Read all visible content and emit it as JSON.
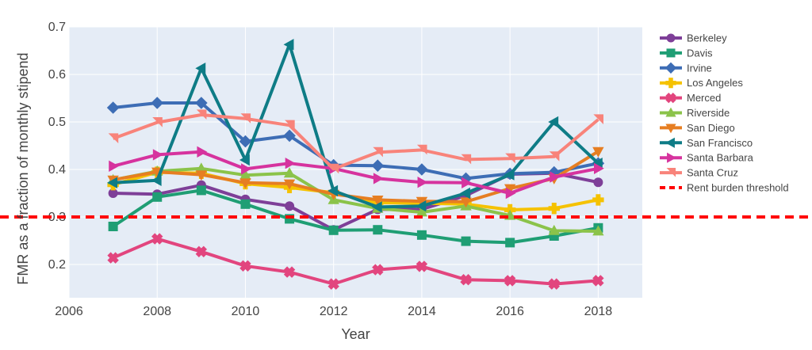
{
  "chart_data": {
    "type": "line",
    "xlabel": "Year",
    "ylabel": "FMR as a fraction of monthly stipend",
    "xlim": [
      2006,
      2019
    ],
    "ylim": [
      0.13,
      0.7
    ],
    "x_ticks": [
      2006,
      2008,
      2010,
      2012,
      2014,
      2016,
      2018
    ],
    "x_tick_labels": [
      "2006",
      "2008",
      "2010",
      "2012",
      "2014",
      "2016",
      "2018"
    ],
    "y_ticks": [
      0.2,
      0.3,
      0.4,
      0.5,
      0.6,
      0.7
    ],
    "y_tick_labels": [
      "0.2",
      "0.3",
      "0.4",
      "0.5",
      "0.6",
      "0.7"
    ],
    "grid": true,
    "legend_position": "right",
    "x": [
      2007,
      2008,
      2009,
      2010,
      2011,
      2012,
      2013,
      2014,
      2015,
      2016,
      2017,
      2018
    ],
    "series": [
      {
        "name": "Berkeley",
        "color": "#7E3F98",
        "marker": "circle",
        "values": [
          0.35,
          0.348,
          0.367,
          0.337,
          0.323,
          0.273,
          0.316,
          0.316,
          0.345,
          0.39,
          0.392,
          0.373
        ]
      },
      {
        "name": "Davis",
        "color": "#1F9E74",
        "marker": "square",
        "values": [
          0.28,
          0.342,
          0.356,
          0.327,
          0.296,
          0.272,
          0.273,
          0.262,
          0.249,
          0.246,
          0.26,
          0.277
        ]
      },
      {
        "name": "Irvine",
        "color": "#3D6DB5",
        "marker": "diamond",
        "values": [
          0.53,
          0.54,
          0.54,
          0.459,
          0.471,
          0.409,
          0.408,
          0.4,
          0.381,
          0.391,
          0.394,
          0.413
        ]
      },
      {
        "name": "Los Angeles",
        "color": "#F5C200",
        "marker": "cross",
        "values": [
          0.368,
          0.394,
          0.392,
          0.37,
          0.362,
          0.351,
          0.33,
          0.329,
          0.327,
          0.315,
          0.318,
          0.336
        ]
      },
      {
        "name": "Merced",
        "color": "#E2457E",
        "marker": "x",
        "values": [
          0.214,
          0.254,
          0.227,
          0.197,
          0.184,
          0.159,
          0.189,
          0.196,
          0.168,
          0.166,
          0.159,
          0.166
        ]
      },
      {
        "name": "Riverside",
        "color": "#8BC34A",
        "marker": "triangle-up",
        "values": [
          0.378,
          0.396,
          0.402,
          0.388,
          0.392,
          0.336,
          0.318,
          0.31,
          0.323,
          0.303,
          0.271,
          0.27
        ]
      },
      {
        "name": "San Diego",
        "color": "#E67E22",
        "marker": "triangle-down",
        "values": [
          0.378,
          0.395,
          0.389,
          0.372,
          0.37,
          0.348,
          0.336,
          0.333,
          0.332,
          0.36,
          0.381,
          0.438
        ]
      },
      {
        "name": "San Francisco",
        "color": "#0E7C86",
        "marker": "triangle-left",
        "values": [
          0.372,
          0.377,
          0.613,
          0.42,
          0.663,
          0.355,
          0.321,
          0.323,
          0.35,
          0.389,
          0.5,
          0.413
        ]
      },
      {
        "name": "Santa Barbara",
        "color": "#D6339E",
        "marker": "triangle-right",
        "values": [
          0.407,
          0.431,
          0.437,
          0.401,
          0.413,
          0.402,
          0.381,
          0.373,
          0.372,
          0.35,
          0.384,
          0.402
        ]
      },
      {
        "name": "Santa Cruz",
        "color": "#F8837A",
        "marker": "triangle-ne",
        "values": [
          0.465,
          0.499,
          0.515,
          0.507,
          0.493,
          0.401,
          0.436,
          0.441,
          0.421,
          0.423,
          0.427,
          0.505
        ]
      }
    ],
    "threshold": {
      "name": "Rent burden threshold",
      "value": 0.3,
      "color": "#FF0000",
      "dash": "dashed"
    }
  }
}
